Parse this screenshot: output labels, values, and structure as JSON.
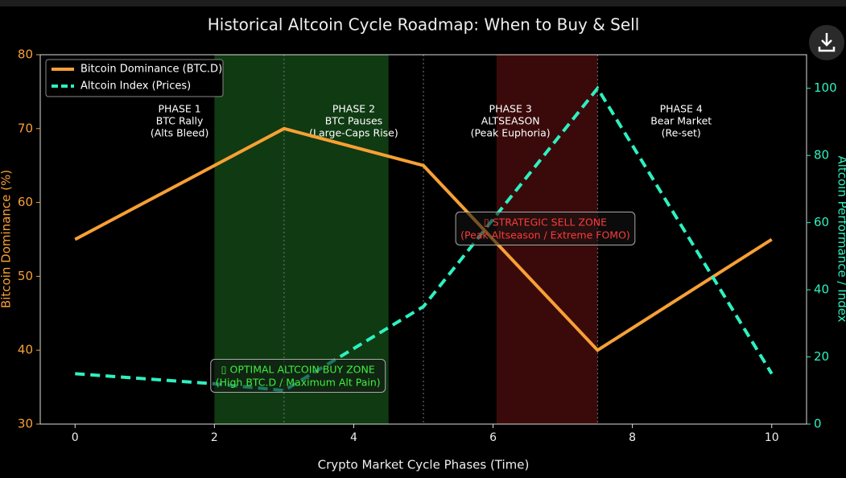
{
  "chart_data": {
    "type": "line",
    "title": "Historical Altcoin Cycle Roadmap: When to Buy & Sell",
    "x_label": "Crypto Market Cycle Phases (Time)",
    "y_label": "Bitcoin Dominance (%)",
    "y2_label": "Altcoin Performance / Index",
    "xlim": [
      -0.5,
      10.5
    ],
    "xticks": [
      0,
      2,
      4,
      6,
      8,
      10
    ],
    "ylim": [
      30,
      80
    ],
    "yticks": [
      30,
      40,
      50,
      60,
      70,
      80
    ],
    "y2lim": [
      0,
      110
    ],
    "y2ticks": [
      0,
      20,
      40,
      60,
      80,
      100
    ],
    "legend": "upper left",
    "series": [
      {
        "name": "Bitcoin Dominance (BTC.D)",
        "color": "#f7a035",
        "x": [
          0,
          3,
          5,
          7.5,
          10
        ],
        "values": [
          55,
          70,
          65,
          40,
          55
        ]
      },
      {
        "name": "Altcoin Index (Prices)",
        "color": "#2ef0c0",
        "axis": "y2",
        "dashed": true,
        "x": [
          0,
          2,
          3,
          5,
          7.5,
          10
        ],
        "values": [
          15,
          12,
          10,
          35,
          100,
          15
        ]
      }
    ],
    "spans": [
      {
        "x": [
          2,
          4.5
        ],
        "color": "#0f3a12"
      },
      {
        "x": [
          6.05,
          7.5
        ],
        "color": "#3a0a0a"
      }
    ],
    "vlines": [
      3,
      5,
      7.5
    ],
    "phases": [
      [
        "PHASE 1",
        "BTC Rally",
        "(Alts Bleed)"
      ],
      [
        "PHASE 2",
        "BTC Pauses",
        "(Large-Caps Rise)"
      ],
      [
        "PHASE 3",
        "ALTSEASON",
        "(Peak Euphoria)"
      ],
      [
        "PHASE 4",
        "Bear Market",
        "(Re-set)"
      ]
    ],
    "annotations": [
      {
        "lines": [
          "▯ OPTIMAL ALTCOIN BUY ZONE",
          "(High BTC.D / Maximum Alt Pain)"
        ],
        "color": "#3cf03c"
      },
      {
        "lines": [
          "▯ STRATEGIC SELL ZONE",
          "(Peak Altseason / Extreme FOMO)"
        ],
        "color": "#ff3a3a"
      }
    ]
  }
}
